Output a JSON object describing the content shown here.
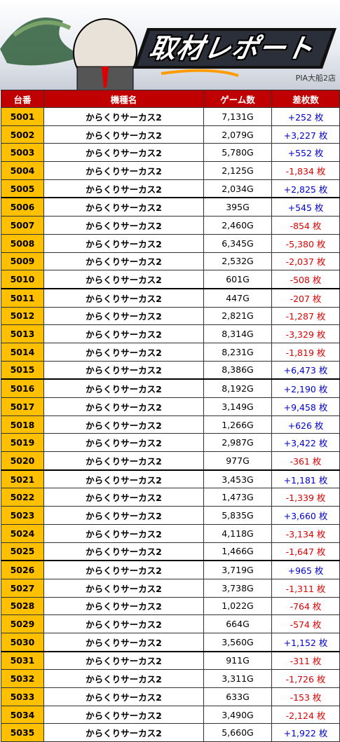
{
  "header": {
    "title": "取材レポート",
    "store": "PIA大船2店"
  },
  "table": {
    "columns": [
      "台番",
      "機種名",
      "ゲーム数",
      "差枚数"
    ],
    "rows": [
      [
        "5001",
        "からくりサーカス2",
        "7,131G",
        "+252 枚"
      ],
      [
        "5002",
        "からくりサーカス2",
        "2,079G",
        "+3,227 枚"
      ],
      [
        "5003",
        "からくりサーカス2",
        "5,780G",
        "+552 枚"
      ],
      [
        "5004",
        "からくりサーカス2",
        "2,125G",
        "-1,834 枚"
      ],
      [
        "5005",
        "からくりサーカス2",
        "2,034G",
        "+2,825 枚"
      ],
      [
        "5006",
        "からくりサーカス2",
        "395G",
        "+545 枚"
      ],
      [
        "5007",
        "からくりサーカス2",
        "2,460G",
        "-854 枚"
      ],
      [
        "5008",
        "からくりサーカス2",
        "6,345G",
        "-5,380 枚"
      ],
      [
        "5009",
        "からくりサーカス2",
        "2,532G",
        "-2,037 枚"
      ],
      [
        "5010",
        "からくりサーカス2",
        "601G",
        "-508 枚"
      ],
      [
        "5011",
        "からくりサーカス2",
        "447G",
        "-207 枚"
      ],
      [
        "5012",
        "からくりサーカス2",
        "2,821G",
        "-1,287 枚"
      ],
      [
        "5013",
        "からくりサーカス2",
        "8,314G",
        "-3,329 枚"
      ],
      [
        "5014",
        "からくりサーカス2",
        "8,231G",
        "-1,819 枚"
      ],
      [
        "5015",
        "からくりサーカス2",
        "8,386G",
        "+6,473 枚"
      ],
      [
        "5016",
        "からくりサーカス2",
        "8,192G",
        "+2,190 枚"
      ],
      [
        "5017",
        "からくりサーカス2",
        "3,149G",
        "+9,458 枚"
      ],
      [
        "5018",
        "からくりサーカス2",
        "1,266G",
        "+626 枚"
      ],
      [
        "5019",
        "からくりサーカス2",
        "2,987G",
        "+3,422 枚"
      ],
      [
        "5020",
        "からくりサーカス2",
        "977G",
        "-361 枚"
      ],
      [
        "5021",
        "からくりサーカス2",
        "3,453G",
        "+1,181 枚"
      ],
      [
        "5022",
        "からくりサーカス2",
        "1,473G",
        "-1,339 枚"
      ],
      [
        "5023",
        "からくりサーカス2",
        "5,835G",
        "+3,660 枚"
      ],
      [
        "5024",
        "からくりサーカス2",
        "4,118G",
        "-3,134 枚"
      ],
      [
        "5025",
        "からくりサーカス2",
        "1,466G",
        "-1,647 枚"
      ],
      [
        "5026",
        "からくりサーカス2",
        "3,719G",
        "+965 枚"
      ],
      [
        "5027",
        "からくりサーカス2",
        "3,738G",
        "-1,311 枚"
      ],
      [
        "5028",
        "からくりサーカス2",
        "1,022G",
        "-764 枚"
      ],
      [
        "5029",
        "からくりサーカス2",
        "664G",
        "-574 枚"
      ],
      [
        "5030",
        "からくりサーカス2",
        "3,560G",
        "+1,152 枚"
      ],
      [
        "5031",
        "からくりサーカス2",
        "911G",
        "-311 枚"
      ],
      [
        "5032",
        "からくりサーカス2",
        "3,311G",
        "-1,726 枚"
      ],
      [
        "5033",
        "からくりサーカス2",
        "633G",
        "-153 枚"
      ],
      [
        "5034",
        "からくりサーカス2",
        "3,490G",
        "-2,124 枚"
      ],
      [
        "5035",
        "からくりサーカス2",
        "5,660G",
        "+1,922 枚"
      ]
    ]
  }
}
